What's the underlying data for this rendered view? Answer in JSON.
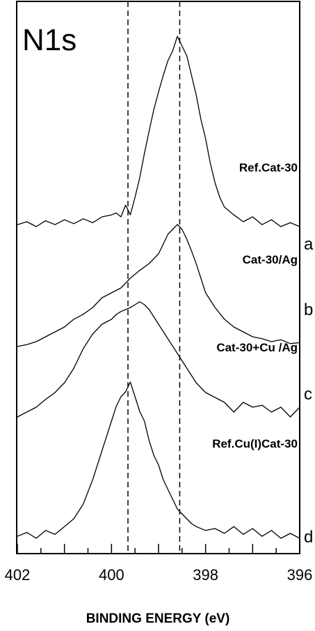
{
  "chart_data": {
    "type": "line",
    "title": "N1s",
    "xlabel": "BINDING ENERGY (eV)",
    "ylabel": "",
    "xlim": [
      402,
      396
    ],
    "x_reversed": true,
    "x_ticks": [
      402,
      400,
      398,
      396
    ],
    "x_tick_labels": [
      "402",
      "400",
      "398",
      "396"
    ],
    "reference_lines_x": [
      399.65,
      398.55
    ],
    "grid": false,
    "series": [
      {
        "name": "Ref.Cat-30",
        "letter": "a",
        "x": [
          402.0,
          401.8,
          401.6,
          401.4,
          401.2,
          401.0,
          400.8,
          400.6,
          400.4,
          400.2,
          400.0,
          399.9,
          399.8,
          399.7,
          399.6,
          399.5,
          399.4,
          399.3,
          399.2,
          399.1,
          399.0,
          398.9,
          398.8,
          398.7,
          398.6,
          398.5,
          398.4,
          398.3,
          398.2,
          398.1,
          398.0,
          397.9,
          397.8,
          397.7,
          397.6,
          397.4,
          397.2,
          397.0,
          396.8,
          396.6,
          396.4,
          396.2,
          396.0
        ],
        "y": [
          0.02,
          0.05,
          0.0,
          0.06,
          0.02,
          0.07,
          0.03,
          0.08,
          0.04,
          0.1,
          0.12,
          0.14,
          0.1,
          0.22,
          0.12,
          0.3,
          0.5,
          0.75,
          0.98,
          1.2,
          1.38,
          1.55,
          1.7,
          1.8,
          1.95,
          1.85,
          1.75,
          1.55,
          1.35,
          1.1,
          0.9,
          0.65,
          0.45,
          0.3,
          0.2,
          0.12,
          0.05,
          0.1,
          0.02,
          0.07,
          0.0,
          0.04,
          0.0
        ]
      },
      {
        "name": "Cat-30/Ag",
        "letter": "b",
        "x": [
          402.0,
          401.8,
          401.6,
          401.4,
          401.2,
          401.0,
          400.8,
          400.6,
          400.4,
          400.2,
          400.0,
          399.8,
          399.6,
          399.4,
          399.2,
          399.0,
          398.9,
          398.8,
          398.7,
          398.6,
          398.5,
          398.4,
          398.3,
          398.2,
          398.1,
          398.0,
          397.8,
          397.6,
          397.4,
          397.2,
          397.0,
          396.8,
          396.6,
          396.4,
          396.2,
          396.0
        ],
        "y": [
          0.0,
          0.02,
          0.05,
          0.1,
          0.15,
          0.2,
          0.28,
          0.33,
          0.4,
          0.5,
          0.55,
          0.6,
          0.7,
          0.78,
          0.85,
          0.95,
          1.05,
          1.15,
          1.2,
          1.25,
          1.2,
          1.1,
          0.98,
          0.85,
          0.7,
          0.55,
          0.4,
          0.28,
          0.2,
          0.15,
          0.1,
          0.08,
          0.05,
          0.07,
          0.03,
          0.04
        ]
      },
      {
        "name": "Cat-30+Cu /Ag",
        "letter": "c",
        "x": [
          402.0,
          401.8,
          401.6,
          401.4,
          401.2,
          401.0,
          400.8,
          400.6,
          400.4,
          400.2,
          400.0,
          399.9,
          399.8,
          399.7,
          399.6,
          399.5,
          399.4,
          399.3,
          399.2,
          399.0,
          398.8,
          398.6,
          398.4,
          398.2,
          398.0,
          397.8,
          397.6,
          397.4,
          397.2,
          397.0,
          396.8,
          396.6,
          396.4,
          396.2,
          396.0
        ],
        "y": [
          0.0,
          0.05,
          0.1,
          0.18,
          0.25,
          0.35,
          0.5,
          0.7,
          0.85,
          0.95,
          1.0,
          1.05,
          1.08,
          1.1,
          1.12,
          1.15,
          1.18,
          1.15,
          1.1,
          0.95,
          0.8,
          0.65,
          0.5,
          0.35,
          0.25,
          0.2,
          0.15,
          0.05,
          0.15,
          0.1,
          0.12,
          0.05,
          0.1,
          0.0,
          0.1
        ]
      },
      {
        "name": "Ref.Cu(I)Cat-30",
        "letter": "d",
        "x": [
          402.0,
          401.8,
          401.6,
          401.4,
          401.2,
          401.0,
          400.8,
          400.6,
          400.4,
          400.2,
          400.0,
          399.9,
          399.8,
          399.7,
          399.6,
          399.5,
          399.4,
          399.3,
          399.2,
          399.1,
          399.0,
          398.9,
          398.8,
          398.7,
          398.6,
          398.5,
          398.4,
          398.3,
          398.2,
          398.0,
          397.8,
          397.6,
          397.4,
          397.2,
          397.0,
          396.8,
          396.6,
          396.4,
          396.2,
          396.0
        ],
        "y": [
          0.02,
          0.06,
          0.0,
          0.08,
          0.04,
          0.12,
          0.2,
          0.35,
          0.6,
          0.9,
          1.2,
          1.35,
          1.45,
          1.5,
          1.6,
          1.45,
          1.3,
          1.2,
          1.0,
          0.85,
          0.75,
          0.6,
          0.5,
          0.4,
          0.3,
          0.25,
          0.2,
          0.15,
          0.12,
          0.08,
          0.1,
          0.05,
          0.12,
          0.04,
          0.1,
          0.02,
          0.08,
          0.0,
          0.05,
          0.0
        ]
      }
    ]
  }
}
